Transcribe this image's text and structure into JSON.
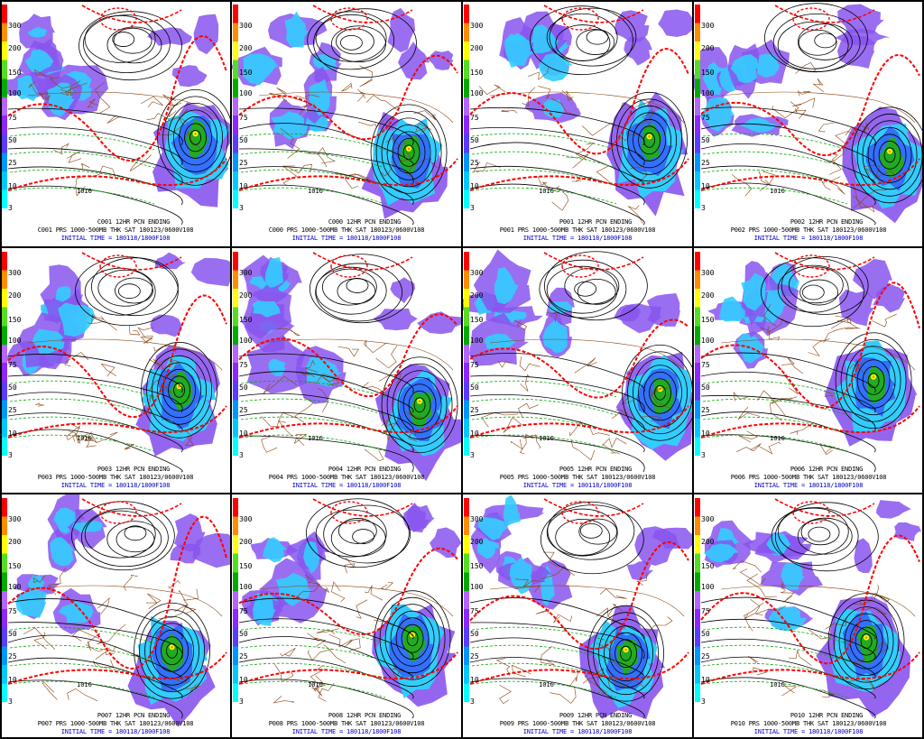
{
  "scale_values": [
    "300",
    "200",
    "150",
    "100",
    "75",
    "50",
    "25",
    "10",
    "3"
  ],
  "colorbar": [
    "#00ffff",
    "#00c8ff",
    "#0096ff",
    "#5a3cff",
    "#8c28ff",
    "#b464ff",
    "#00aa00",
    "#55dd22",
    "#ffff00",
    "#ff8c00",
    "#ff0000"
  ],
  "colors": {
    "isobar": "#000000",
    "thickness_red": "#ff0000",
    "thickness_green": "#00aa00",
    "border": "#8b4513",
    "precip_light": "#33ccff",
    "precip_mid": "#3366ff",
    "precip_purple": "#8855ee",
    "precip_heavy": "#22aa22"
  },
  "panels": [
    {
      "id": "C001",
      "title": "C001 12HR PCN ENDING",
      "subtitle": "C001 PRS 1000-500MB THK SAT 180123/0600V108",
      "initial": "INITIAL TIME = 180118/1800F108",
      "contour": "1016"
    },
    {
      "id": "C000",
      "title": "C000 12HR PCN ENDING",
      "subtitle": "C000 PRS 1000-500MB THK SAT 180123/0600V108",
      "initial": "INITIAL TIME = 180118/1800F108",
      "contour": "1016"
    },
    {
      "id": "P001",
      "title": "P001 12HR PCN ENDING",
      "subtitle": "P001 PRS 1000-500MB THK SAT 180123/0600V108",
      "initial": "INITIAL TIME = 180118/1800F108",
      "contour": "1016"
    },
    {
      "id": "P002",
      "title": "P002 12HR PCN ENDING",
      "subtitle": "P002 PRS 1000-500MB THK SAT 180123/0600V108",
      "initial": "INITIAL TIME = 180118/1800F108",
      "contour": "1016"
    },
    {
      "id": "P003",
      "title": "P003 12HR PCN ENDING",
      "subtitle": "P003 PRS 1000-500MB THK SAT 180123/0600V108",
      "initial": "INITIAL TIME = 180118/1800F108",
      "contour": "1016"
    },
    {
      "id": "P004",
      "title": "P004 12HR PCN ENDING",
      "subtitle": "P004 PRS 1000-500MB THK SAT 180123/0600V108",
      "initial": "INITIAL TIME = 180118/1800F108",
      "contour": "1016"
    },
    {
      "id": "P005",
      "title": "P005 12HR PCN ENDING",
      "subtitle": "P005 PRS 1000-500MB THK SAT 180123/0600V108",
      "initial": "INITIAL TIME = 180118/1800F108",
      "contour": "1016"
    },
    {
      "id": "P006",
      "title": "P006 12HR PCN ENDING",
      "subtitle": "P006 PRS 1000-500MB THK SAT 180123/0600V108",
      "initial": "INITIAL TIME = 180118/1800F108",
      "contour": "1016"
    },
    {
      "id": "P007",
      "title": "P007 12HR PCN ENDING",
      "subtitle": "P007 PRS 1000-500MB THK SAT 180123/0600V108",
      "initial": "INITIAL TIME = 180118/1800F108",
      "contour": "1016"
    },
    {
      "id": "P008",
      "title": "P008 12HR PCN ENDING",
      "subtitle": "P008 PRS 1000-500MB THK SAT 180123/0600V108",
      "initial": "INITIAL TIME = 180118/1800F108",
      "contour": "1016"
    },
    {
      "id": "P009",
      "title": "P009 12HR PCN ENDING",
      "subtitle": "P009 PRS 1000-500MB THK SAT 180123/0600V108",
      "initial": "INITIAL TIME = 180118/1800F108",
      "contour": "1016"
    },
    {
      "id": "P010",
      "title": "P010 12HR PCN ENDING",
      "subtitle": "P010 PRS 1000-500MB THK SAT 180123/0600V108",
      "initial": "INITIAL TIME = 180118/1800F108",
      "contour": "1016"
    }
  ]
}
